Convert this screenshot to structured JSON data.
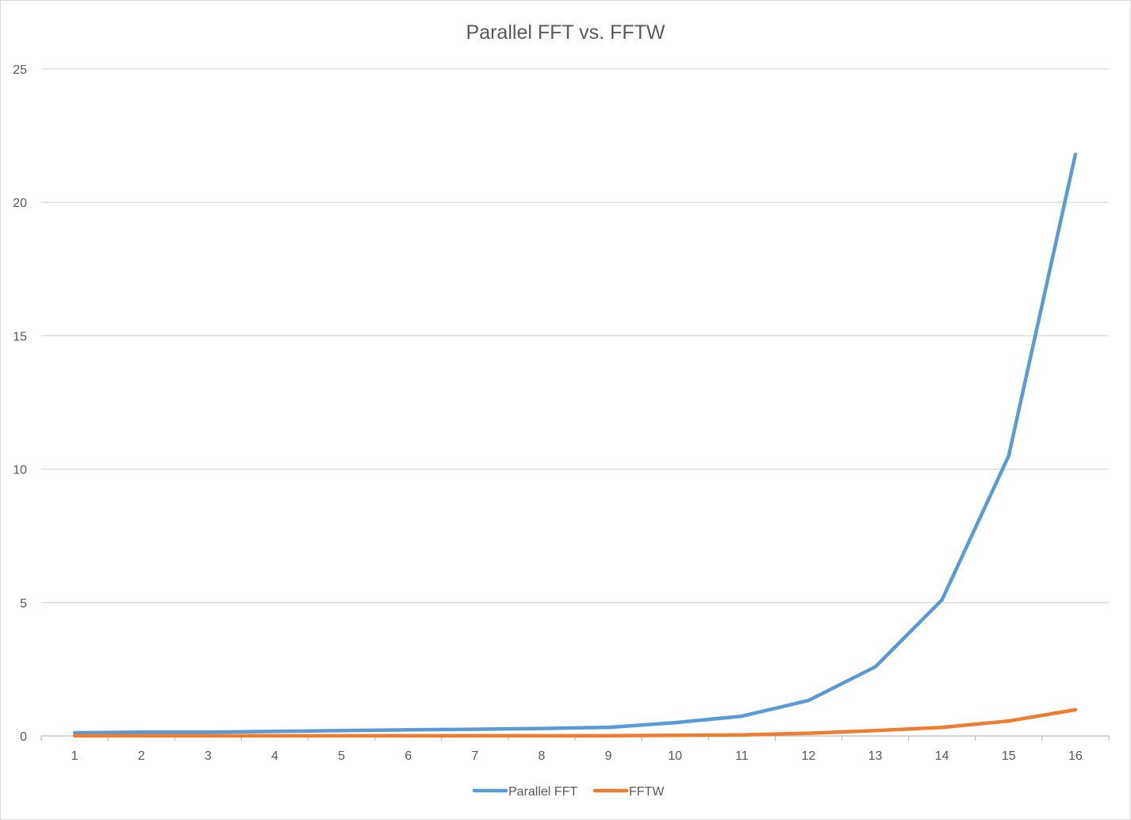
{
  "chart_data": {
    "type": "line",
    "title": "Parallel FFT vs. FFTW",
    "xlabel": "",
    "ylabel": "",
    "categories": [
      "1",
      "2",
      "3",
      "4",
      "5",
      "6",
      "7",
      "8",
      "9",
      "10",
      "11",
      "12",
      "13",
      "14",
      "15",
      "16"
    ],
    "y_ticks": [
      "0",
      "5",
      "10",
      "15",
      "20",
      "25"
    ],
    "ylim": [
      0,
      25
    ],
    "grid": true,
    "legend": "bottom",
    "series": [
      {
        "name": "Parallel FFT",
        "color": "#5b9bd5",
        "values": [
          0.12,
          0.14,
          0.14,
          0.17,
          0.2,
          0.23,
          0.25,
          0.28,
          0.32,
          0.5,
          0.74,
          1.33,
          2.59,
          5.1,
          10.5,
          21.8
        ]
      },
      {
        "name": "FFTW",
        "color": "#ed7d31",
        "values": [
          0.01,
          0.01,
          0.01,
          0.01,
          0.01,
          0.01,
          0.01,
          0.01,
          0.01,
          0.02,
          0.04,
          0.1,
          0.2,
          0.32,
          0.56,
          0.98
        ]
      }
    ]
  }
}
